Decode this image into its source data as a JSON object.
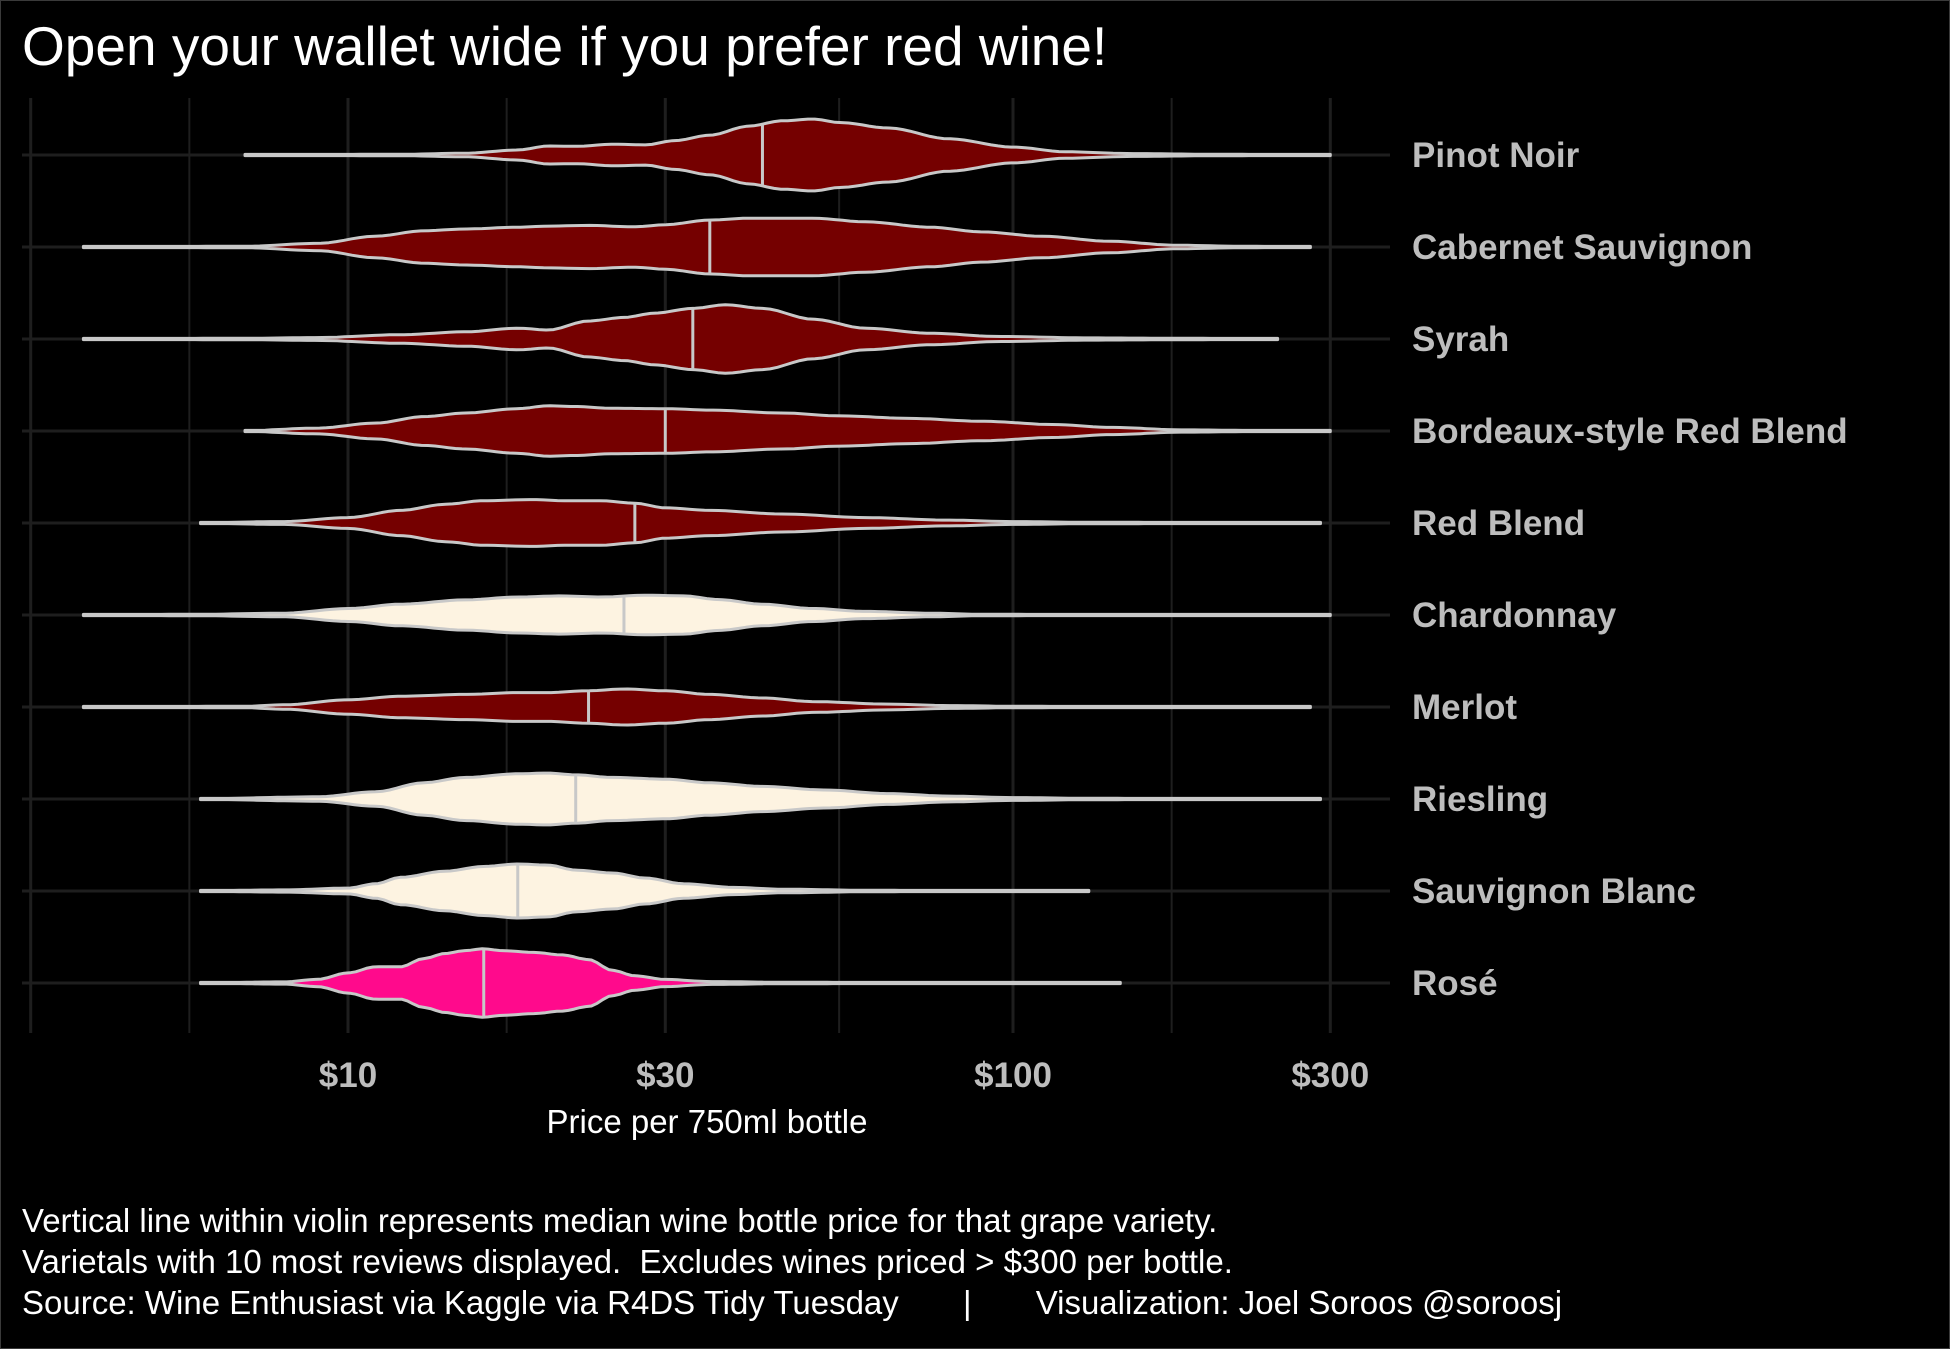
{
  "title": "Open your wallet wide if you prefer red wine!",
  "caption": {
    "line1": "Vertical line within violin represents median wine bottle price for that grape variety.",
    "line2": "Varietals with 10 most reviews displayed.  Excludes wines priced > $300 per bottle.",
    "line3": "Source: Wine Enthusiast via Kaggle via R4DS Tidy Tuesday       |       Visualization: Joel Soroos @soroosj"
  },
  "colors": {
    "background": "#000000",
    "red": "#750000",
    "white": "#fdf3e1",
    "rose": "#ff0a8c",
    "outline": "#c8c8c8",
    "grid": "#1e1e1e",
    "label": "#bdbdbd"
  },
  "chart_data": {
    "type": "violin",
    "orientation": "horizontal",
    "xscale": "log10",
    "xlim": [
      4,
      300
    ],
    "xticks": [
      10,
      30,
      100,
      300
    ],
    "xtick_labels": [
      "$10",
      "$30",
      "$100",
      "$300"
    ],
    "xlabel": "Price per 750ml bottle",
    "ylabel": "",
    "grid": true,
    "legend": "none",
    "categories": [
      "Pinot Noir",
      "Cabernet Sauvignon",
      "Syrah",
      "Bordeaux-style Red Blend",
      "Red Blend",
      "Chardonnay",
      "Merlot",
      "Riesling",
      "Sauvignon Blanc",
      "Rosé"
    ],
    "series": [
      {
        "variety": "Pinot Noir",
        "color_group": "red",
        "min": 7,
        "max": 300,
        "median": 42,
        "density": [
          [
            7,
            0.01
          ],
          [
            12,
            0.02
          ],
          [
            15,
            0.05
          ],
          [
            18,
            0.14
          ],
          [
            20,
            0.25
          ],
          [
            22,
            0.24
          ],
          [
            25,
            0.3
          ],
          [
            28,
            0.28
          ],
          [
            31,
            0.4
          ],
          [
            35,
            0.55
          ],
          [
            40,
            0.8
          ],
          [
            45,
            0.95
          ],
          [
            50,
            1.0
          ],
          [
            55,
            0.9
          ],
          [
            65,
            0.75
          ],
          [
            80,
            0.45
          ],
          [
            100,
            0.22
          ],
          [
            120,
            0.09
          ],
          [
            150,
            0.04
          ],
          [
            200,
            0.02
          ],
          [
            300,
            0.01
          ]
        ]
      },
      {
        "variety": "Cabernet Sauvignon",
        "color_group": "red",
        "min": 4,
        "max": 280,
        "median": 35,
        "density": [
          [
            4,
            0.01
          ],
          [
            7,
            0.02
          ],
          [
            9,
            0.1
          ],
          [
            11,
            0.3
          ],
          [
            13,
            0.45
          ],
          [
            15,
            0.5
          ],
          [
            18,
            0.55
          ],
          [
            20,
            0.58
          ],
          [
            23,
            0.6
          ],
          [
            27,
            0.56
          ],
          [
            30,
            0.62
          ],
          [
            35,
            0.75
          ],
          [
            40,
            0.8
          ],
          [
            50,
            0.8
          ],
          [
            60,
            0.7
          ],
          [
            75,
            0.55
          ],
          [
            90,
            0.42
          ],
          [
            110,
            0.3
          ],
          [
            140,
            0.16
          ],
          [
            175,
            0.05
          ],
          [
            220,
            0.02
          ],
          [
            280,
            0.01
          ]
        ]
      },
      {
        "variety": "Syrah",
        "color_group": "red",
        "min": 4,
        "max": 250,
        "median": 33,
        "density": [
          [
            4,
            0.01
          ],
          [
            7,
            0.02
          ],
          [
            9,
            0.04
          ],
          [
            12,
            0.12
          ],
          [
            15,
            0.2
          ],
          [
            18,
            0.3
          ],
          [
            20,
            0.25
          ],
          [
            23,
            0.5
          ],
          [
            26,
            0.6
          ],
          [
            29,
            0.72
          ],
          [
            33,
            0.85
          ],
          [
            37,
            0.95
          ],
          [
            42,
            0.85
          ],
          [
            50,
            0.55
          ],
          [
            60,
            0.3
          ],
          [
            75,
            0.16
          ],
          [
            95,
            0.07
          ],
          [
            130,
            0.03
          ],
          [
            180,
            0.02
          ],
          [
            250,
            0.01
          ]
        ]
      },
      {
        "variety": "Bordeaux-style Red Blend",
        "color_group": "red",
        "min": 7,
        "max": 300,
        "median": 30,
        "density": [
          [
            7,
            0.01
          ],
          [
            9,
            0.08
          ],
          [
            11,
            0.22
          ],
          [
            13,
            0.4
          ],
          [
            15,
            0.5
          ],
          [
            18,
            0.62
          ],
          [
            20,
            0.7
          ],
          [
            22,
            0.68
          ],
          [
            25,
            0.63
          ],
          [
            30,
            0.62
          ],
          [
            35,
            0.58
          ],
          [
            45,
            0.5
          ],
          [
            55,
            0.42
          ],
          [
            70,
            0.35
          ],
          [
            90,
            0.27
          ],
          [
            115,
            0.18
          ],
          [
            140,
            0.1
          ],
          [
            180,
            0.03
          ],
          [
            240,
            0.015
          ],
          [
            300,
            0.01
          ]
        ]
      },
      {
        "variety": "Red Blend",
        "color_group": "red",
        "min": 6,
        "max": 290,
        "median": 27,
        "density": [
          [
            6,
            0.01
          ],
          [
            8,
            0.04
          ],
          [
            10,
            0.15
          ],
          [
            12,
            0.35
          ],
          [
            14,
            0.52
          ],
          [
            16,
            0.62
          ],
          [
            19,
            0.65
          ],
          [
            21,
            0.62
          ],
          [
            24,
            0.62
          ],
          [
            27,
            0.55
          ],
          [
            30,
            0.42
          ],
          [
            35,
            0.35
          ],
          [
            45,
            0.25
          ],
          [
            60,
            0.15
          ],
          [
            80,
            0.08
          ],
          [
            100,
            0.04
          ],
          [
            130,
            0.02
          ],
          [
            200,
            0.015
          ],
          [
            290,
            0.01
          ]
        ]
      },
      {
        "variety": "Chardonnay",
        "color_group": "white",
        "min": 4,
        "max": 300,
        "median": 26,
        "density": [
          [
            4,
            0.01
          ],
          [
            6,
            0.02
          ],
          [
            8,
            0.05
          ],
          [
            10,
            0.18
          ],
          [
            12,
            0.3
          ],
          [
            15,
            0.42
          ],
          [
            18,
            0.5
          ],
          [
            21,
            0.53
          ],
          [
            24,
            0.5
          ],
          [
            28,
            0.55
          ],
          [
            32,
            0.53
          ],
          [
            36,
            0.43
          ],
          [
            42,
            0.3
          ],
          [
            50,
            0.18
          ],
          [
            60,
            0.1
          ],
          [
            75,
            0.05
          ],
          [
            90,
            0.02
          ],
          [
            150,
            0.01
          ],
          [
            300,
            0.01
          ]
        ]
      },
      {
        "variety": "Merlot",
        "color_group": "red",
        "min": 4,
        "max": 280,
        "median": 23,
        "density": [
          [
            4,
            0.01
          ],
          [
            7,
            0.02
          ],
          [
            8,
            0.06
          ],
          [
            10,
            0.2
          ],
          [
            12,
            0.3
          ],
          [
            15,
            0.35
          ],
          [
            18,
            0.4
          ],
          [
            20,
            0.4
          ],
          [
            23,
            0.45
          ],
          [
            26,
            0.5
          ],
          [
            30,
            0.45
          ],
          [
            35,
            0.35
          ],
          [
            42,
            0.25
          ],
          [
            50,
            0.15
          ],
          [
            65,
            0.08
          ],
          [
            80,
            0.04
          ],
          [
            100,
            0.02
          ],
          [
            150,
            0.01
          ],
          [
            280,
            0.01
          ]
        ]
      },
      {
        "variety": "Riesling",
        "color_group": "white",
        "min": 6,
        "max": 290,
        "median": 22,
        "density": [
          [
            6,
            0.01
          ],
          [
            9,
            0.06
          ],
          [
            11,
            0.2
          ],
          [
            13,
            0.45
          ],
          [
            15,
            0.6
          ],
          [
            18,
            0.7
          ],
          [
            20,
            0.72
          ],
          [
            22,
            0.67
          ],
          [
            25,
            0.6
          ],
          [
            30,
            0.55
          ],
          [
            35,
            0.45
          ],
          [
            42,
            0.35
          ],
          [
            52,
            0.25
          ],
          [
            65,
            0.15
          ],
          [
            80,
            0.08
          ],
          [
            100,
            0.04
          ],
          [
            130,
            0.02
          ],
          [
            200,
            0.01
          ],
          [
            290,
            0.01
          ]
        ]
      },
      {
        "variety": "Sauvignon Blanc",
        "color_group": "white",
        "min": 6,
        "max": 130,
        "median": 18,
        "density": [
          [
            6,
            0.01
          ],
          [
            8,
            0.03
          ],
          [
            10,
            0.08
          ],
          [
            11,
            0.2
          ],
          [
            12,
            0.38
          ],
          [
            14,
            0.55
          ],
          [
            16,
            0.68
          ],
          [
            18,
            0.75
          ],
          [
            20,
            0.72
          ],
          [
            22,
            0.58
          ],
          [
            25,
            0.5
          ],
          [
            28,
            0.36
          ],
          [
            32,
            0.2
          ],
          [
            38,
            0.1
          ],
          [
            45,
            0.05
          ],
          [
            60,
            0.02
          ],
          [
            90,
            0.01
          ],
          [
            130,
            0.01
          ]
        ]
      },
      {
        "variety": "Rosé",
        "color_group": "rose",
        "min": 6,
        "max": 145,
        "median": 16,
        "density": [
          [
            6,
            0.005
          ],
          [
            8,
            0.03
          ],
          [
            9,
            0.1
          ],
          [
            10,
            0.28
          ],
          [
            11,
            0.45
          ],
          [
            12,
            0.45
          ],
          [
            13,
            0.68
          ],
          [
            14,
            0.82
          ],
          [
            15,
            0.9
          ],
          [
            16,
            0.95
          ],
          [
            17,
            0.9
          ],
          [
            19,
            0.85
          ],
          [
            21,
            0.78
          ],
          [
            23,
            0.65
          ],
          [
            25,
            0.35
          ],
          [
            27,
            0.2
          ],
          [
            30,
            0.1
          ],
          [
            35,
            0.04
          ],
          [
            45,
            0.02
          ],
          [
            80,
            0.01
          ],
          [
            145,
            0.01
          ]
        ]
      }
    ]
  }
}
